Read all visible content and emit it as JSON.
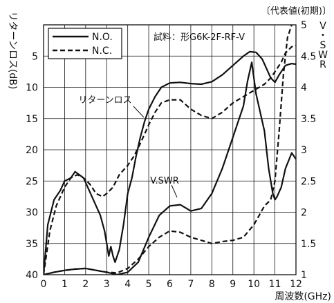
{
  "chart_data": {
    "type": "line",
    "corner_note": "〔代表値(初期)〕",
    "sample_label": "試料：形G6K-2F-RF-V",
    "xlabel": "周波数(GHz)",
    "ylabel_left": "リターンロス(dB)",
    "ylabel_right": "V・SWR",
    "x_ticks": [
      0,
      1,
      2,
      3,
      4,
      5,
      6,
      7,
      8,
      9,
      10,
      11,
      12
    ],
    "y_left_ticks": [
      0,
      5,
      10,
      15,
      20,
      25,
      30,
      35,
      40
    ],
    "y_right_ticks": [
      "5",
      "4.5",
      "4",
      "3.5",
      "3",
      "2.5",
      "2",
      "1.5",
      "1"
    ],
    "xlim": [
      0,
      12
    ],
    "ylim_left": [
      0,
      40
    ],
    "ylim_left_inverted": true,
    "ylim_right": [
      1,
      5
    ],
    "grid": true,
    "legend_position": "top-left",
    "legend": [
      {
        "label": "N.O.",
        "style": "solid"
      },
      {
        "label": "N.C.",
        "style": "dashed"
      }
    ],
    "annotations": [
      {
        "text": "リターンロス",
        "target_series": "Return loss N.O."
      },
      {
        "text": "V.SWR",
        "target_series": "V.SWR N.O."
      }
    ],
    "series": [
      {
        "legend": "N.O.",
        "quantity": "return-loss",
        "axis": "left",
        "style": "solid",
        "x": [
          0,
          0.2,
          0.5,
          0.8,
          1.0,
          1.3,
          1.5,
          1.7,
          1.9,
          2.1,
          2.3,
          2.5,
          2.7,
          2.9,
          3.0,
          3.1,
          3.2,
          3.3,
          3.4,
          3.6,
          3.8,
          4.0,
          4.2,
          4.4,
          4.6,
          4.8,
          5.0,
          5.3,
          5.6,
          6.0,
          6.5,
          7.0,
          7.5,
          8.0,
          8.5,
          9.0,
          9.5,
          9.8,
          10.1,
          10.4,
          10.6,
          10.8,
          11.0,
          11.2,
          11.5,
          11.8,
          12.0
        ],
        "y": [
          40,
          32,
          28,
          26.5,
          25,
          24.5,
          23.5,
          24,
          24.5,
          26,
          27.5,
          29,
          30.5,
          33,
          35,
          37,
          35.5,
          37,
          38,
          36,
          32,
          27,
          24.5,
          21,
          18,
          15.5,
          13.5,
          11.5,
          10,
          9.3,
          9.2,
          9.4,
          9.5,
          9.1,
          8,
          6.5,
          5,
          4.3,
          4.4,
          5.5,
          7,
          8.5,
          9.2,
          8,
          6.5,
          6.2,
          6.3
        ]
      },
      {
        "legend": "N.C.",
        "quantity": "return-loss",
        "axis": "left",
        "style": "dashed",
        "x": [
          0,
          0.3,
          0.6,
          1.0,
          1.3,
          1.6,
          1.9,
          2.2,
          2.5,
          2.8,
          3.0,
          3.3,
          3.6,
          4.0,
          4.3,
          4.6,
          5.0,
          5.3,
          5.6,
          6.0,
          6.5,
          7.0,
          7.5,
          8.0,
          8.5,
          9.0,
          9.5,
          10.0,
          10.5,
          10.8,
          11.0,
          11.3,
          11.5,
          11.8,
          12.0
        ],
        "y": [
          40,
          33,
          29,
          26,
          24.5,
          24,
          24.5,
          25.5,
          27,
          27.5,
          27,
          26,
          24,
          22.5,
          21,
          19,
          16,
          14,
          12.5,
          12,
          12,
          13.5,
          14.5,
          15,
          14,
          12.5,
          11.5,
          10.5,
          9.5,
          8.5,
          7.5,
          6,
          4.5,
          3.5,
          3.3
        ]
      },
      {
        "legend": "N.O.",
        "quantity": "vswr",
        "axis": "right",
        "style": "solid",
        "x": [
          0,
          0.5,
          1.0,
          1.5,
          2.0,
          2.5,
          3.0,
          3.5,
          4.0,
          4.5,
          5.0,
          5.5,
          6.0,
          6.5,
          7.0,
          7.5,
          8.0,
          8.5,
          9.0,
          9.5,
          9.7,
          9.9,
          10.1,
          10.3,
          10.5,
          10.7,
          10.9,
          11.0,
          11.1,
          11.3,
          11.5,
          11.8,
          12.0
        ],
        "y": [
          1,
          1.04,
          1.07,
          1.09,
          1.1,
          1.07,
          1.04,
          1.0,
          1.04,
          1.2,
          1.6,
          1.95,
          2.1,
          2.12,
          2.02,
          2.06,
          2.3,
          2.7,
          3.2,
          3.7,
          4.1,
          4.4,
          3.9,
          3.6,
          3.3,
          2.7,
          2.3,
          2.2,
          2.25,
          2.4,
          2.7,
          2.95,
          2.85
        ]
      },
      {
        "legend": "N.C.",
        "quantity": "vswr",
        "axis": "right",
        "style": "dashed",
        "x": [
          0,
          0.5,
          1.0,
          1.5,
          2.0,
          2.5,
          3.0,
          3.5,
          4.0,
          4.5,
          5.0,
          5.5,
          6.0,
          6.5,
          7.0,
          7.5,
          8.0,
          8.5,
          9.0,
          9.5,
          10.0,
          10.5,
          10.8,
          11.0,
          11.2,
          11.4,
          11.6,
          11.8
        ],
        "y": [
          1,
          1.04,
          1.07,
          1.09,
          1.1,
          1.07,
          1.04,
          1.03,
          1.1,
          1.25,
          1.45,
          1.6,
          1.7,
          1.68,
          1.6,
          1.55,
          1.5,
          1.53,
          1.55,
          1.6,
          1.8,
          2.1,
          2.2,
          2.5,
          3.3,
          4.2,
          4.8,
          5.0
        ]
      }
    ]
  }
}
